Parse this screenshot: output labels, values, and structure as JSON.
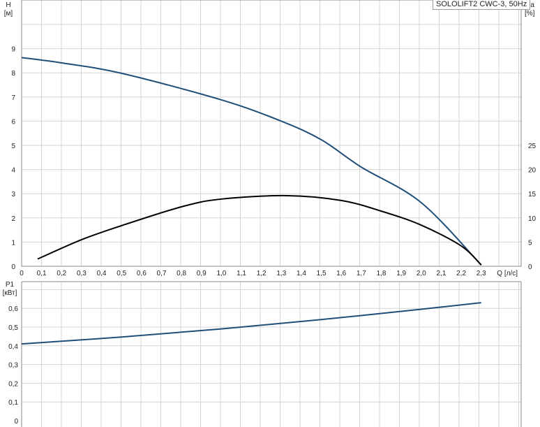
{
  "chart_data": [
    {
      "type": "line",
      "title": "SOLOLIFT2 CWC-3, 50Hz",
      "xlabel": "Q [л/с]",
      "ylabel": "H [м]",
      "y2label": "eta [%]",
      "xlim": [
        0,
        2.5
      ],
      "ylim": [
        0,
        11
      ],
      "y2lim": [
        0,
        55
      ],
      "grid": true,
      "xticks": [
        "0",
        "0,1",
        "0,2",
        "0,3",
        "0,4",
        "0,5",
        "0,6",
        "0,7",
        "0,8",
        "0,9",
        "1,0",
        "1,1",
        "1,2",
        "1,3",
        "1,4",
        "1,5",
        "1,6",
        "1,7",
        "1,8",
        "1,9",
        "2,0",
        "2,1",
        "2,2",
        "2,3"
      ],
      "yticks": [
        "0",
        "1",
        "2",
        "3",
        "4",
        "5",
        "6",
        "7",
        "8",
        "9"
      ],
      "y2ticks": [
        "0",
        "5",
        "10",
        "15",
        "20",
        "25"
      ],
      "series": [
        {
          "axis": "H",
          "color": "#1f4e79",
          "x": [
            0,
            0.2,
            0.5,
            1.0,
            1.3,
            1.5,
            1.7,
            2.0,
            2.3
          ],
          "y": [
            8.63,
            8.41,
            7.98,
            6.88,
            6.0,
            5.23,
            4.1,
            2.63,
            0.05
          ]
        },
        {
          "axis": "eta",
          "color": "#000000",
          "x": [
            0.08,
            0.3,
            0.5,
            0.8,
            1.0,
            1.33,
            1.6,
            1.8,
            2.0,
            2.2,
            2.3
          ],
          "y": [
            1.5,
            5.5,
            8.4,
            12.3,
            13.9,
            14.6,
            13.6,
            11.4,
            8.5,
            4.2,
            0.3
          ]
        }
      ]
    },
    {
      "type": "line",
      "ylabel": "P1 [кВт]",
      "xlim": [
        0,
        2.5
      ],
      "ylim": [
        0,
        0.74
      ],
      "grid": true,
      "yticks": [
        "0",
        "0,1",
        "0,2",
        "0,3",
        "0,4",
        "0,5",
        "0,6"
      ],
      "series": [
        {
          "color": "#1f4e79",
          "x": [
            0,
            0.5,
            1.0,
            1.5,
            2.0,
            2.3
          ],
          "y": [
            0.41,
            0.447,
            0.49,
            0.54,
            0.595,
            0.63
          ]
        }
      ]
    }
  ]
}
